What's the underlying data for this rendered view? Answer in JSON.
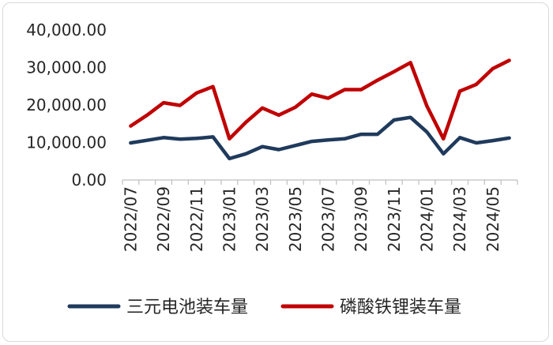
{
  "chart_data": {
    "type": "line",
    "title": "",
    "xlabel": "",
    "ylabel": "",
    "ylim": [
      0,
      40000
    ],
    "yticks": [
      0,
      10000,
      20000,
      30000,
      40000
    ],
    "ytick_labels": [
      "0.00",
      "10,000.00",
      "20,000.00",
      "30,000.00",
      "40,000.00"
    ],
    "grid": false,
    "legend_position": "bottom",
    "x": [
      "2022/07",
      "2022/08",
      "2022/09",
      "2022/10",
      "2022/11",
      "2022/12",
      "2023/01",
      "2023/02",
      "2023/03",
      "2023/04",
      "2023/05",
      "2023/06",
      "2023/07",
      "2023/08",
      "2023/09",
      "2023/10",
      "2023/11",
      "2023/12",
      "2024/01",
      "2024/02",
      "2024/03",
      "2024/04",
      "2024/05",
      "2024/06"
    ],
    "xtick_labels": [
      "2022/07",
      "2022/09",
      "2022/11",
      "2023/01",
      "2023/03",
      "2023/05",
      "2023/07",
      "2023/09",
      "2023/11",
      "2024/01",
      "2024/03",
      "2024/05"
    ],
    "series": [
      {
        "name": "三元电池装车量",
        "color": "#1f3a5c",
        "values": [
          9900,
          10600,
          11300,
          10900,
          11100,
          11500,
          5700,
          7000,
          8900,
          8100,
          9200,
          10300,
          10700,
          11000,
          12200,
          12200,
          16000,
          16700,
          12800,
          7000,
          11300,
          9900,
          10500,
          11200
        ]
      },
      {
        "name": "磷酸铁锂装车量",
        "color": "#c00000",
        "values": [
          14400,
          17300,
          20600,
          19900,
          23200,
          24900,
          11000,
          15400,
          19200,
          17300,
          19400,
          22900,
          21800,
          24100,
          24100,
          26600,
          28900,
          31300,
          19700,
          11000,
          23700,
          25500,
          29700,
          31900
        ]
      }
    ]
  }
}
